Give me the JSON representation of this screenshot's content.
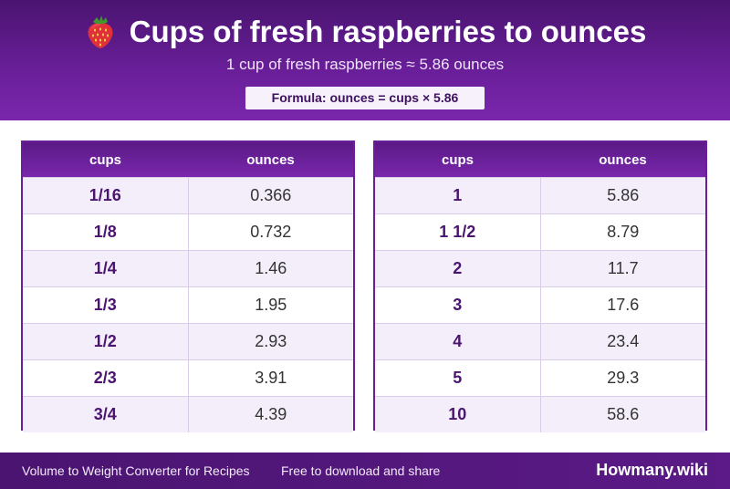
{
  "header": {
    "title": "Cups of fresh raspberries to ounces",
    "icon": "strawberry-icon",
    "subtitle": "1 cup of fresh raspberries ≈ 5.86 ounces",
    "formula": "Formula: ounces = cups × 5.86"
  },
  "columns": {
    "cups": "cups",
    "ounces": "ounces"
  },
  "left_table": [
    {
      "cups": "1/16",
      "ounces": "0.366"
    },
    {
      "cups": "1/8",
      "ounces": "0.732"
    },
    {
      "cups": "1/4",
      "ounces": "1.46"
    },
    {
      "cups": "1/3",
      "ounces": "1.95"
    },
    {
      "cups": "1/2",
      "ounces": "2.93"
    },
    {
      "cups": "2/3",
      "ounces": "3.91"
    },
    {
      "cups": "3/4",
      "ounces": "4.39"
    }
  ],
  "right_table": [
    {
      "cups": "1",
      "ounces": "5.86"
    },
    {
      "cups": "1 1/2",
      "ounces": "8.79"
    },
    {
      "cups": "2",
      "ounces": "11.7"
    },
    {
      "cups": "3",
      "ounces": "17.6"
    },
    {
      "cups": "4",
      "ounces": "23.4"
    },
    {
      "cups": "5",
      "ounces": "29.3"
    },
    {
      "cups": "10",
      "ounces": "58.6"
    }
  ],
  "footer": {
    "left_text": "Volume to Weight Converter for Recipes",
    "middle_text": "Free to download and share",
    "brand": "Howmany.wiki"
  },
  "colors": {
    "primary": "#6a1f9a",
    "dark": "#4a1470",
    "row_alt": "#f3eefa"
  }
}
